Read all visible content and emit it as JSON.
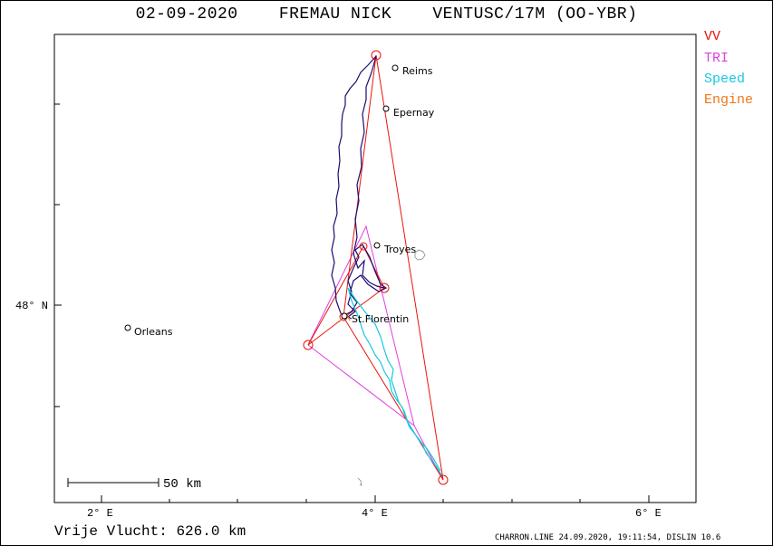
{
  "title": {
    "date": "02-09-2020",
    "pilot": "FREMAU NICK",
    "glider": "VENTUSC/17M (OO-YBR)"
  },
  "legend": [
    {
      "label": "VV",
      "color": "#e8140c"
    },
    {
      "label": "TRI",
      "color": "#e040e0"
    },
    {
      "label": "Speed",
      "color": "#18c8e0"
    },
    {
      "label": "Engine",
      "color": "#f07818"
    }
  ],
  "axes": {
    "x_ticks": [
      "2° E",
      "4° E",
      "6° E"
    ],
    "y_ticks": [
      "48° N"
    ]
  },
  "cities": [
    {
      "name": "Reims"
    },
    {
      "name": "Epernay"
    },
    {
      "name": "Troyes"
    },
    {
      "name": "St.Florentin"
    },
    {
      "name": "Orleans"
    }
  ],
  "scale_bar": {
    "label": "50  km"
  },
  "distance": {
    "label": "Vrije Vlucht:",
    "value": "626.0 km"
  },
  "credit": "CHARRON.LINE 24.09.2020, 19:11:54, DISLIN 10.6",
  "colors": {
    "track": "#1c0c70",
    "vv": "#e8140c",
    "tri": "#e040e0",
    "speed": "#18c8e0"
  }
}
